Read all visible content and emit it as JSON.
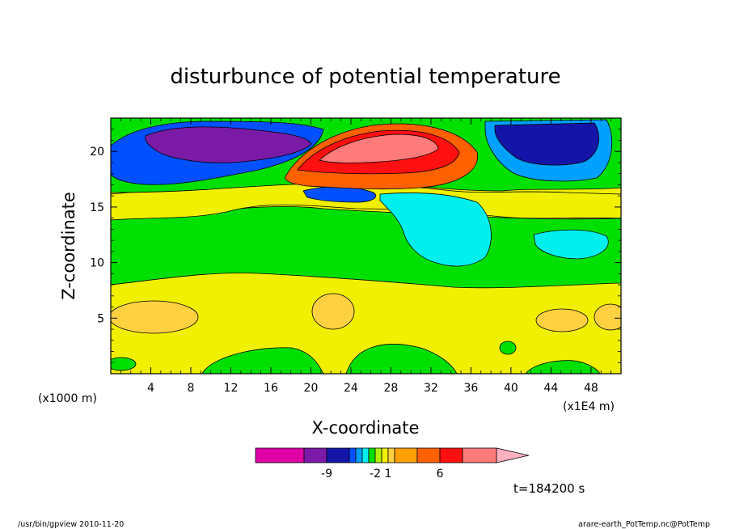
{
  "chart_data": {
    "type": "heatmap",
    "title": "disturbunce of potential temperature",
    "xlabel": "X-coordinate",
    "ylabel": "Z-coordinate",
    "x_unit": "(x1000 m)",
    "x_scale_note": "(x1E4 m)",
    "xlim": [
      0,
      51
    ],
    "ylim": [
      0,
      23
    ],
    "x_ticks": [
      4,
      8,
      12,
      16,
      20,
      24,
      28,
      32,
      36,
      40,
      44,
      48
    ],
    "y_ticks": [
      5,
      10,
      15,
      20
    ],
    "time_label": "t=184200 s",
    "colorbar": {
      "orientation": "horizontal",
      "levels": [
        {
          "color": "#e000a8"
        },
        {
          "color": "#7a1aa6"
        },
        {
          "color": "#1414a8"
        },
        {
          "color": "#0050ff"
        },
        {
          "color": "#00a0ff"
        },
        {
          "color": "#00f0f0"
        },
        {
          "color": "#00e000"
        },
        {
          "color": "#b0f000"
        },
        {
          "color": "#f0f000"
        },
        {
          "color": "#ffd040"
        },
        {
          "color": "#ffa000"
        },
        {
          "color": "#ff6000"
        },
        {
          "color": "#ff1010"
        },
        {
          "color": "#ff7a7a"
        },
        {
          "color": "#ffb0c0"
        }
      ],
      "labels": [
        "-9",
        "-2",
        "1",
        "6"
      ]
    },
    "regions": [
      {
        "name": "bottom-green-patches",
        "color": "#00e000"
      },
      {
        "name": "lower-yellow-band",
        "color": "#f0f000",
        "z_range": [
          0,
          8
        ]
      },
      {
        "name": "middle-green-band",
        "color": "#00e000",
        "z_range": [
          8,
          16
        ]
      },
      {
        "name": "upper-yellow-band",
        "color": "#f0f000",
        "z_range": [
          14,
          18
        ]
      },
      {
        "name": "cyan-negative-area",
        "color": "#00f0f0",
        "x_range": [
          27,
          38
        ],
        "z_range": [
          10,
          16
        ]
      },
      {
        "name": "purple-negative-core",
        "color": "#7a1aa6",
        "x_range": [
          3,
          19
        ],
        "z_range": [
          18,
          22
        ]
      },
      {
        "name": "red-positive-core",
        "color": "#ff1010",
        "x_range": [
          19,
          34
        ],
        "z_range": [
          18,
          21.5
        ]
      },
      {
        "name": "right-blue-area",
        "color": "#1414a8",
        "x_range": [
          38,
          48
        ],
        "z_range": [
          18,
          22
        ]
      }
    ]
  },
  "footer": {
    "left": "/usr/bin/gpview  2010-11-20",
    "right": "arare-earth_PotTemp.nc@PotTemp"
  }
}
